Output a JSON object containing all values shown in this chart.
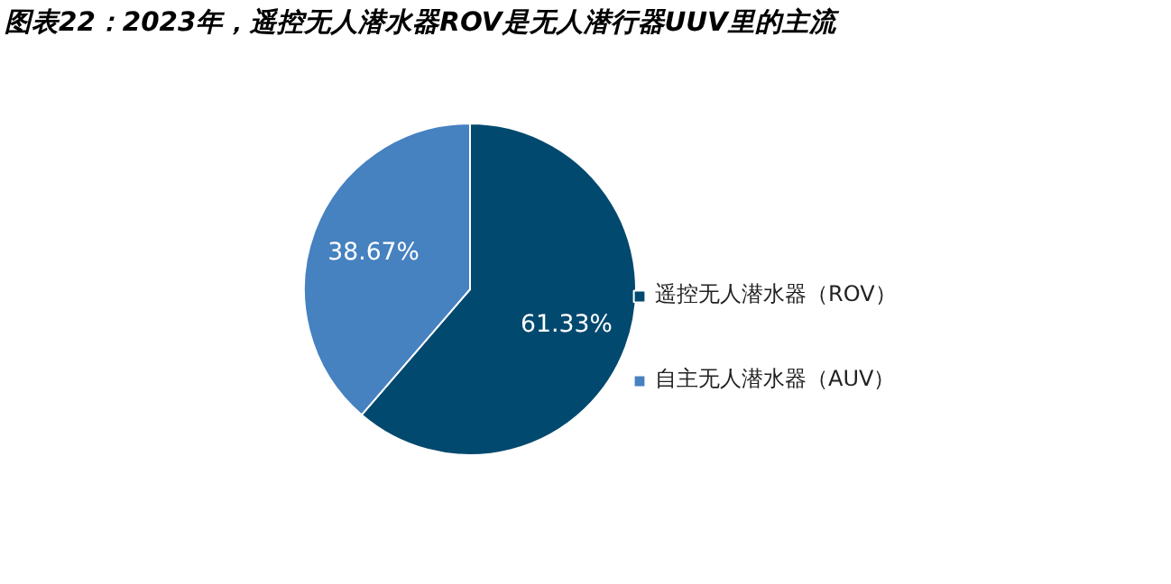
{
  "chart_data": {
    "type": "pie",
    "title": "图表22：2023年，遥控无人潜水器ROV是无人潜行器UUV里的主流",
    "categories": [
      "遥控无人潜水器（ROV）",
      "自主无人潜水器（AUV）"
    ],
    "values": [
      61.33,
      38.67
    ],
    "colors": [
      "#02496f",
      "#4681c0"
    ],
    "value_labels": [
      "61.33%",
      "38.67%"
    ],
    "legend": "right"
  }
}
